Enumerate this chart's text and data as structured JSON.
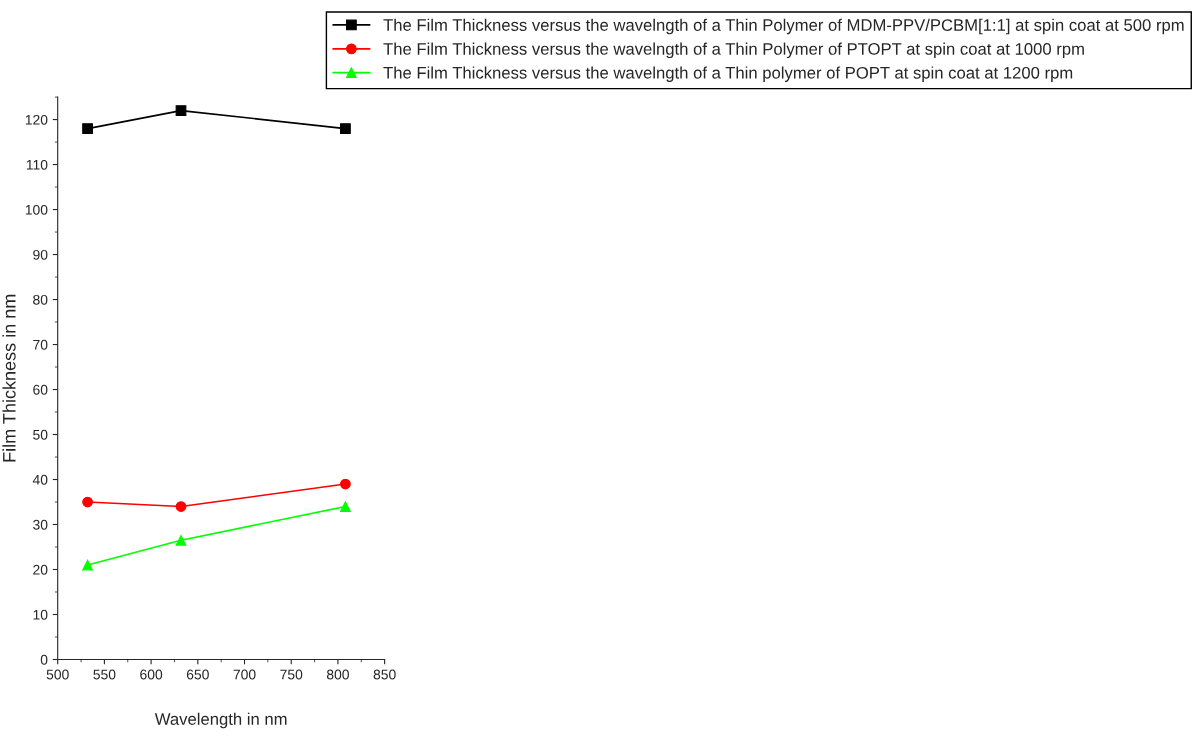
{
  "chart_data": {
    "type": "line",
    "xlabel": "Wavelength in nm",
    "ylabel": "Film Thickness in nm",
    "x": [
      532,
      632,
      808
    ],
    "series": [
      {
        "name": "The Film Thickness versus the wavelngth of a Thin Polymer of MDM-PPV/PCBM[1:1] at spin coat at 500 rpm",
        "color": "#000000",
        "marker": "square",
        "values": [
          118,
          122,
          118
        ]
      },
      {
        "name": "The Film Thickness versus the wavelngth of a Thin Polymer of PTOPT at spin coat at 1000 rpm",
        "color": "#ff0000",
        "marker": "circle",
        "values": [
          35,
          34,
          39
        ]
      },
      {
        "name": "The Film Thickness versus the wavelngth of a Thin polymer of POPT at spin coat at 1200 rpm",
        "color": "#00ff00",
        "marker": "triangle",
        "values": [
          21,
          26.5,
          34
        ]
      }
    ],
    "xlim": [
      500,
      850
    ],
    "xticks": [
      500,
      550,
      600,
      650,
      700,
      750,
      800,
      850
    ],
    "ylim": [
      0,
      125
    ],
    "yticks": [
      0,
      10,
      20,
      30,
      40,
      50,
      60,
      70,
      80,
      90,
      100,
      110,
      120
    ],
    "grid": false,
    "legend": "top right",
    "line_style": "solid"
  }
}
